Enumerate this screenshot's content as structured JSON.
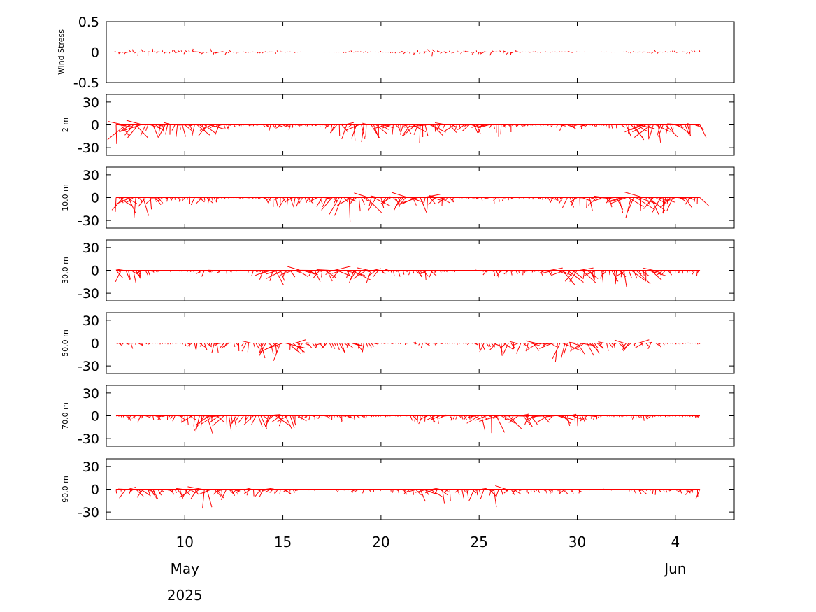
{
  "chart_data": {
    "type": "stick-vector-timeseries",
    "color": "#ff0000",
    "time_range": [
      "2025-05-06",
      "2025-06-07"
    ],
    "x_ticks": [
      {
        "date": "2025-05-10",
        "label": "10"
      },
      {
        "date": "2025-05-15",
        "label": "15"
      },
      {
        "date": "2025-05-20",
        "label": "20"
      },
      {
        "date": "2025-05-25",
        "label": "25"
      },
      {
        "date": "2025-05-30",
        "label": "30"
      },
      {
        "date": "2025-06-04",
        "label": "4"
      }
    ],
    "month_labels": [
      {
        "date": "2025-05-10",
        "label": "May"
      },
      {
        "date": "2025-06-04",
        "label": "Jun"
      }
    ],
    "year_label": {
      "date": "2025-05-10",
      "label": "2025"
    },
    "panels": [
      {
        "ylabel": "Wind Stress",
        "ylim": [
          -0.5,
          0.5
        ],
        "ytick_labels": [
          "0.5",
          "0",
          "-0.5"
        ],
        "yticks": [
          0.5,
          0,
          -0.5
        ],
        "typical_amplitude": 0.05
      },
      {
        "ylabel": "2 m",
        "ylim": [
          -40,
          40
        ],
        "ytick_labels": [
          "30",
          "0",
          "-30"
        ],
        "yticks": [
          30,
          0,
          -30
        ],
        "typical_amplitude": 20
      },
      {
        "ylabel": "10.0 m",
        "ylim": [
          -40,
          40
        ],
        "ytick_labels": [
          "30",
          "0",
          "-30"
        ],
        "yticks": [
          30,
          0,
          -30
        ],
        "typical_amplitude": 20
      },
      {
        "ylabel": "30.0 m",
        "ylim": [
          -40,
          40
        ],
        "ytick_labels": [
          "30",
          "0",
          "-30"
        ],
        "yticks": [
          30,
          0,
          -30
        ],
        "typical_amplitude": 18
      },
      {
        "ylabel": "50.0 m",
        "ylim": [
          -40,
          40
        ],
        "ytick_labels": [
          "30",
          "0",
          "-30"
        ],
        "yticks": [
          30,
          0,
          -30
        ],
        "typical_amplitude": 16
      },
      {
        "ylabel": "70.0 m",
        "ylim": [
          -40,
          40
        ],
        "ytick_labels": [
          "30",
          "0",
          "-30"
        ],
        "yticks": [
          30,
          0,
          -30
        ],
        "typical_amplitude": 16
      },
      {
        "ylabel": "90.0 m",
        "ylim": [
          -40,
          40
        ],
        "ytick_labels": [
          "30",
          "0",
          "-30"
        ],
        "yticks": [
          30,
          0,
          -30
        ],
        "typical_amplitude": 15
      }
    ]
  }
}
